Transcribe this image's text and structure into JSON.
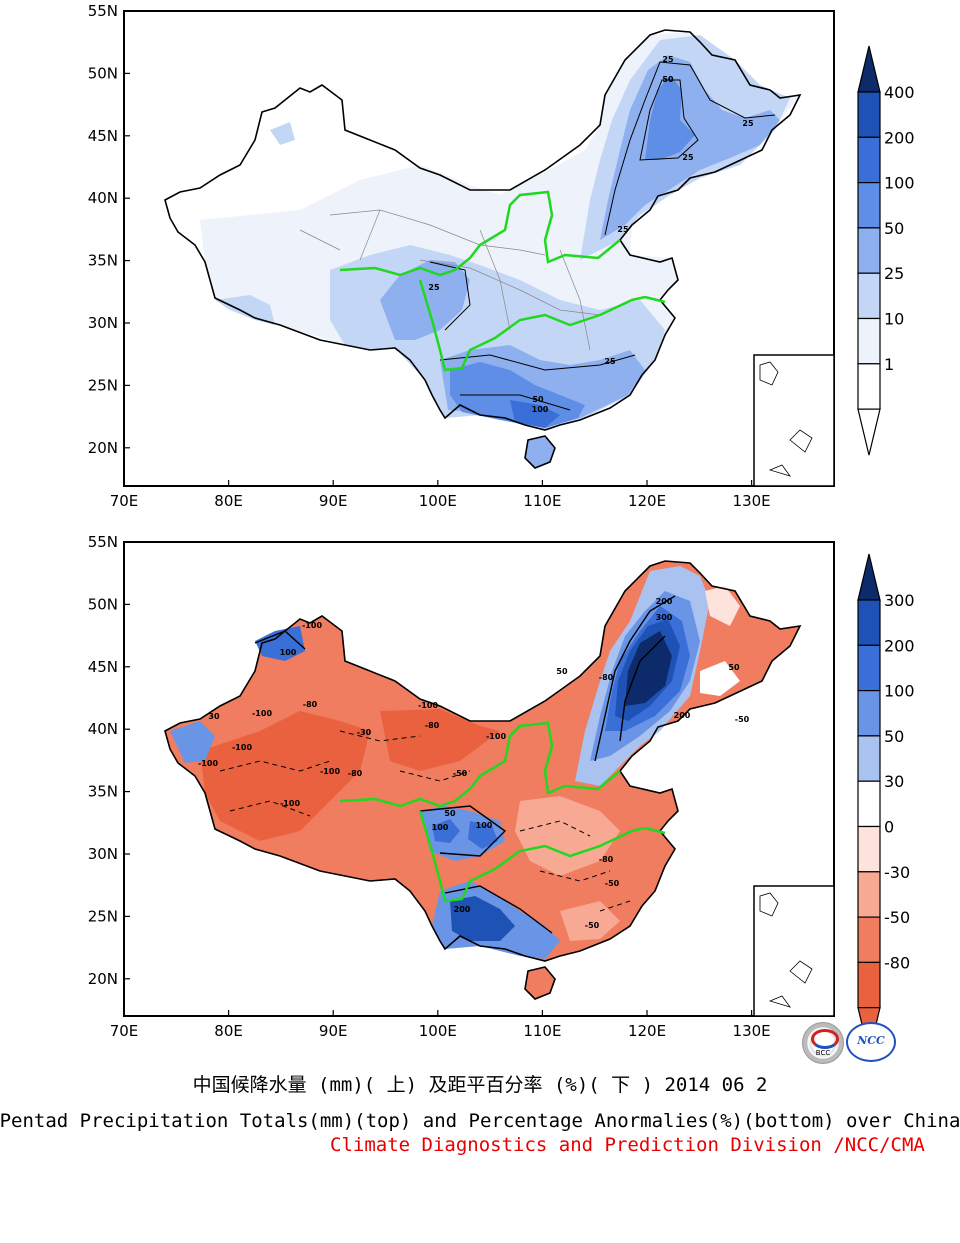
{
  "figure": {
    "caption_cn": "中国候降水量 (mm)( 上) 及距平百分率 (%)( 下 ) 2014 06 2",
    "caption_en": "Pentad Precipitation Totals(mm)(top) and Percentage Anormalies(%)(bottom) over China",
    "caption_credit": "Climate Diagnostics and Prediction Division /NCC/CMA"
  },
  "axes": {
    "lat_labels": [
      "55N",
      "50N",
      "45N",
      "40N",
      "35N",
      "30N",
      "25N",
      "20N"
    ],
    "lon_labels": [
      "70E",
      "80E",
      "90E",
      "100E",
      "110E",
      "120E",
      "130E"
    ]
  },
  "top_panel": {
    "colorbar_labels": [
      "400",
      "200",
      "100",
      "50",
      "25",
      "10",
      "1"
    ],
    "colorbar_colors": [
      "#0d2a6b",
      "#1f52b5",
      "#3a6fd8",
      "#5f8ee6",
      "#8fb0ee",
      "#c4d6f6",
      "#eef2fb",
      "#ffffff"
    ],
    "contour_labels": [
      "25",
      "50",
      "25",
      "25",
      "25",
      "25",
      "50",
      "100",
      "25"
    ]
  },
  "bottom_panel": {
    "colorbar_labels": [
      "300",
      "200",
      "100",
      "50",
      "30",
      "0",
      "-30",
      "-50",
      "-80"
    ],
    "colorbar_colors": [
      "#0d2a6b",
      "#1f52b5",
      "#3a6fd8",
      "#6a95e6",
      "#a9c2f0",
      "#ffffff",
      "#fde3dc",
      "#f7a994",
      "#f07d5f",
      "#ea6140"
    ],
    "contour_labels": [
      "100",
      "-100",
      "-80",
      "-100",
      "-100",
      "-100",
      "-100",
      "-80",
      "-100",
      "-50",
      "100",
      "50",
      "100",
      "-100",
      "-80",
      "-100",
      "200",
      "300",
      "200",
      "-80",
      "-50",
      "50",
      "200",
      "-50",
      "-80",
      "-50",
      "30",
      "50",
      "-30"
    ]
  },
  "logos": [
    "BCC",
    "NCC"
  ]
}
